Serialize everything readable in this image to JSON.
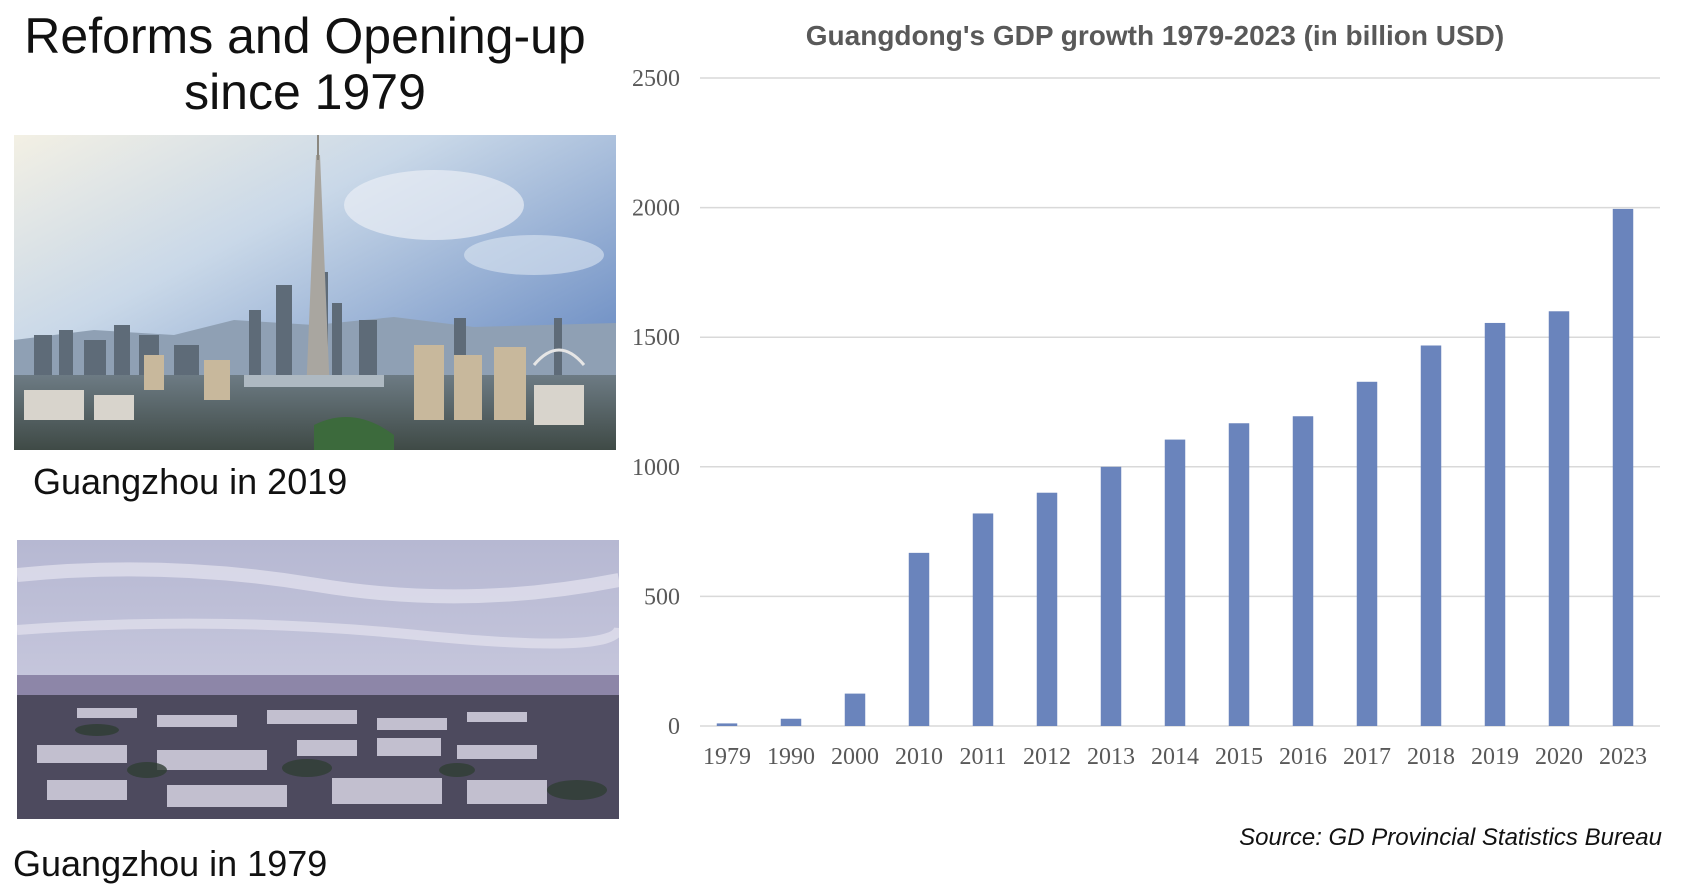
{
  "headline": {
    "line1": "Reforms and Opening-up",
    "line2": "since 1979"
  },
  "photos": {
    "modern": {
      "caption": "Guangzhou in 2019"
    },
    "old": {
      "caption": "Guangzhou in 1979"
    }
  },
  "chart_data": {
    "type": "bar",
    "title": "Guangdong's GDP growth 1979-2023 (in billion USD)",
    "categories": [
      "1979",
      "1990",
      "2000",
      "2010",
      "2011",
      "2012",
      "2013",
      "2014",
      "2015",
      "2016",
      "2017",
      "2018",
      "2019",
      "2020",
      "2023"
    ],
    "values": [
      10,
      28,
      125,
      668,
      820,
      900,
      1000,
      1105,
      1168,
      1195,
      1328,
      1468,
      1555,
      1600,
      1995
    ],
    "ylim": [
      0,
      2500
    ],
    "yticks": [
      0,
      500,
      1000,
      1500,
      2000,
      2500
    ],
    "grid": true,
    "legend": "none",
    "bar_color": "#6a84bc",
    "source": "Source: GD Provincial Statistics Bureau"
  }
}
